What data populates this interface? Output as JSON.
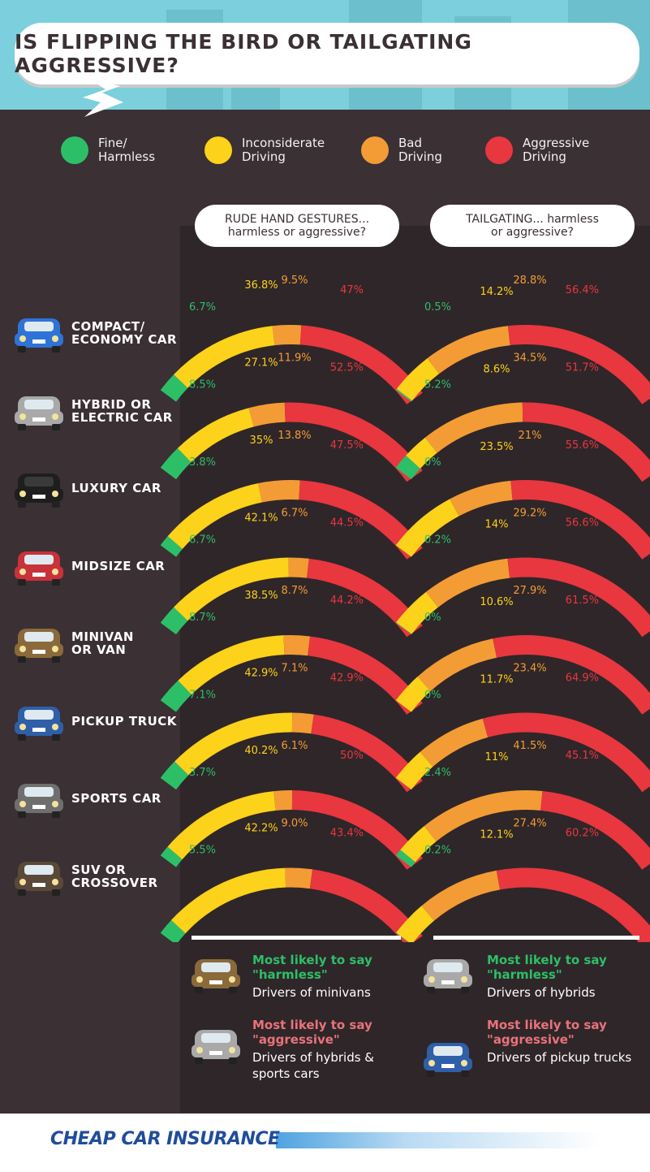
{
  "title": "IS FLIPPING THE BIRD OR TAILGATING AGGRESSIVE?",
  "legend": [
    {
      "label_line1": "Fine/",
      "label_line2": "Harmless",
      "color": "#2dbf68"
    },
    {
      "label_line1": "Inconsiderate",
      "label_line2": "Driving",
      "color": "#fcd21a"
    },
    {
      "label_line1": "Bad",
      "label_line2": "Driving",
      "color": "#f39c35"
    },
    {
      "label_line1": "Aggressive",
      "label_line2": "Driving",
      "color": "#e8373f"
    }
  ],
  "headers": {
    "gestures_line1": "RUDE HAND GESTURES...",
    "gestures_line2": "harmless or aggressive?",
    "tailgating_line1": "TAILGATING... harmless",
    "tailgating_line2": "or aggressive?"
  },
  "cars": [
    {
      "line1": "COMPACT/",
      "line2": "ECONOMY CAR",
      "color": "#2f73d6",
      "icon": "compact-car-icon"
    },
    {
      "line1": "HYBRID OR",
      "line2": "ELECTRIC CAR",
      "color": "#a9a9a9",
      "icon": "hybrid-car-icon"
    },
    {
      "line1": "LUXURY CAR",
      "line2": "",
      "color": "#1e1e1e",
      "icon": "luxury-car-icon"
    },
    {
      "line1": "MIDSIZE CAR",
      "line2": "",
      "color": "#c8323a",
      "icon": "midsize-car-icon"
    },
    {
      "line1": "MINIVAN",
      "line2": "OR VAN",
      "color": "#8a6a3a",
      "icon": "minivan-icon"
    },
    {
      "line1": "PICKUP TRUCK",
      "line2": "",
      "color": "#2f5fa8",
      "icon": "pickup-truck-icon"
    },
    {
      "line1": "SPORTS CAR",
      "line2": "",
      "color": "#6f6f6f",
      "icon": "sports-car-icon"
    },
    {
      "line1": "SUV OR",
      "line2": "CROSSOVER",
      "color": "#5a4838",
      "icon": "suv-icon"
    }
  ],
  "chart_data": [
    {
      "type": "gauge",
      "title": "RUDE HAND GESTURES... harmless or aggressive?",
      "categories": [
        "COMPACT/ ECONOMY CAR",
        "HYBRID OR ELECTRIC CAR",
        "LUXURY CAR",
        "MIDSIZE CAR",
        "MINIVAN OR VAN",
        "PICKUP TRUCK",
        "SPORTS CAR",
        "SUV OR CROSSOVER"
      ],
      "series": [
        {
          "name": "Fine/ Harmless",
          "values": [
            6.7,
            8.5,
            3.8,
            6.7,
            8.7,
            7.1,
            3.7,
            5.5
          ]
        },
        {
          "name": "Inconsiderate Driving",
          "values": [
            36.8,
            27.1,
            35,
            42.1,
            38.5,
            42.9,
            40.2,
            42.2
          ]
        },
        {
          "name": "Bad Driving",
          "values": [
            9.5,
            11.9,
            13.8,
            6.7,
            8.7,
            7.1,
            6.1,
            9.0
          ]
        },
        {
          "name": "Aggressive Driving",
          "values": [
            47,
            52.5,
            47.5,
            44.5,
            44.2,
            42.9,
            50,
            43.4
          ]
        }
      ],
      "labels": [
        [
          "6.7%",
          "36.8%",
          "9.5%",
          "47%"
        ],
        [
          "8.5%",
          "27.1%",
          "11.9%",
          "52.5%"
        ],
        [
          "3.8%",
          "35%",
          "13.8%",
          "47.5%"
        ],
        [
          "6.7%",
          "42.1%",
          "6.7%",
          "44.5%"
        ],
        [
          "8.7%",
          "38.5%",
          "8.7%",
          "44.2%"
        ],
        [
          "7.1%",
          "42.9%",
          "7.1%",
          "42.9%"
        ],
        [
          "3.7%",
          "40.2%",
          "6.1%",
          "50%"
        ],
        [
          "5.5%",
          "42.2%",
          "9.0%",
          "43.4%"
        ]
      ]
    },
    {
      "type": "gauge",
      "title": "TAILGATING... harmless or aggressive?",
      "categories": [
        "COMPACT/ ECONOMY CAR",
        "HYBRID OR ELECTRIC CAR",
        "LUXURY CAR",
        "MIDSIZE CAR",
        "MINIVAN OR VAN",
        "PICKUP TRUCK",
        "SPORTS CAR",
        "SUV OR CROSSOVER"
      ],
      "series": [
        {
          "name": "Fine/ Harmless",
          "values": [
            0.5,
            5.2,
            0,
            0.2,
            0,
            0,
            2.4,
            0.2
          ]
        },
        {
          "name": "Inconsiderate Driving",
          "values": [
            14.2,
            8.6,
            23.5,
            14,
            10.6,
            11.7,
            11,
            12.1
          ]
        },
        {
          "name": "Bad Driving",
          "values": [
            28.8,
            34.5,
            21,
            29.2,
            27.9,
            23.4,
            41.5,
            27.4
          ]
        },
        {
          "name": "Aggressive Driving",
          "values": [
            56.4,
            51.7,
            55.6,
            56.6,
            61.5,
            64.9,
            45.1,
            60.2
          ]
        }
      ],
      "labels": [
        [
          "0.5%",
          "14.2%",
          "28.8%",
          "56.4%"
        ],
        [
          "5.2%",
          "8.6%",
          "34.5%",
          "51.7%"
        ],
        [
          "0%",
          "23.5%",
          "21%",
          "55.6%"
        ],
        [
          "0.2%",
          "14%",
          "29.2%",
          "56.6%"
        ],
        [
          "0%",
          "10.6%",
          "27.9%",
          "61.5%"
        ],
        [
          "0%",
          "11.7%",
          "23.4%",
          "64.9%"
        ],
        [
          "2.4%",
          "11%",
          "41.5%",
          "45.1%"
        ],
        [
          "0.2%",
          "12.1%",
          "27.4%",
          "60.2%"
        ]
      ]
    }
  ],
  "summary": {
    "left": [
      {
        "title_line1": "Most likely to say",
        "title_line2": "\"harmless\"",
        "text_line1": "Drivers of minivans",
        "text_line2": ""
      },
      {
        "title_line1": "Most likely to say",
        "title_line2": "\"aggressive\"",
        "text_line1": "Drivers of hybrids &",
        "text_line2": "sports cars"
      }
    ],
    "right": [
      {
        "title_line1": "Most likely to say",
        "title_line2": "\"harmless\"",
        "text_line1": "Drivers of hybrids",
        "text_line2": ""
      },
      {
        "title_line1": "Most likely to say",
        "title_line2": "\"aggressive\"",
        "text_line1": "Drivers of pickup trucks",
        "text_line2": ""
      }
    ]
  },
  "brand": "CHEAPCARINSURANCE"
}
